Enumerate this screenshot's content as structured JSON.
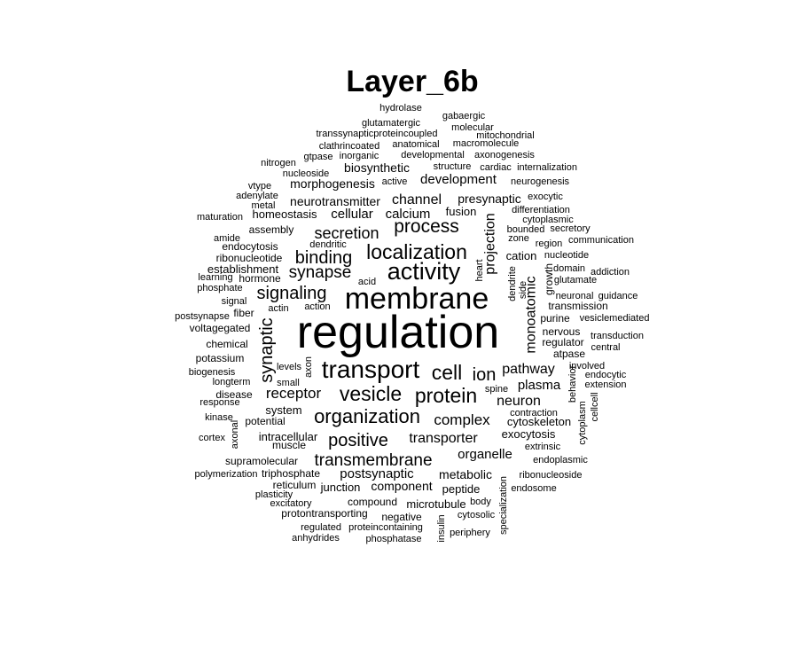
{
  "title": "Layer_6b",
  "words": [
    {
      "text": "regulation",
      "size": 4
    },
    {
      "text": "membrane",
      "size": 3
    },
    {
      "text": "activity",
      "size": 3
    },
    {
      "text": "transport",
      "size": 3
    },
    {
      "text": "localization",
      "size": 2
    },
    {
      "text": "protein",
      "size": 2
    },
    {
      "text": "vesicle",
      "size": 2
    },
    {
      "text": "organization",
      "size": 2
    },
    {
      "text": "cell",
      "size": 2
    },
    {
      "text": "synaptic",
      "size": 2
    },
    {
      "text": "process",
      "size": 2
    },
    {
      "text": "binding",
      "size": 2
    },
    {
      "text": "signaling",
      "size": 2
    },
    {
      "text": "positive",
      "size": 2
    },
    {
      "text": "transmembrane",
      "size": 2
    },
    {
      "text": "ion",
      "size": 2
    },
    {
      "text": "secretion",
      "size": 2
    },
    {
      "text": "synapse",
      "size": 2
    },
    {
      "text": "receptor",
      "size": 2
    },
    {
      "text": "pathway",
      "size": 1
    },
    {
      "text": "complex",
      "size": 1
    },
    {
      "text": "transporter",
      "size": 1
    },
    {
      "text": "channel",
      "size": 1
    },
    {
      "text": "development",
      "size": 1
    },
    {
      "text": "calcium",
      "size": 1
    },
    {
      "text": "cellular",
      "size": 1
    },
    {
      "text": "projection",
      "size": 1
    },
    {
      "text": "monoatomic",
      "size": 1
    },
    {
      "text": "neuron",
      "size": 1
    },
    {
      "text": "plasma",
      "size": 1
    },
    {
      "text": "postsynaptic",
      "size": 1
    },
    {
      "text": "organelle",
      "size": 1
    },
    {
      "text": "metabolic",
      "size": 1
    },
    {
      "text": "presynaptic",
      "size": 1
    },
    {
      "text": "neurotransmitter",
      "size": 1
    },
    {
      "text": "morphogenesis",
      "size": 1
    },
    {
      "text": "biosynthetic",
      "size": 1
    },
    {
      "text": "homeostasis",
      "size": 1
    },
    {
      "text": "component",
      "size": 1
    },
    {
      "text": "intracellular",
      "size": 1
    },
    {
      "text": "exocytosis",
      "size": 1
    },
    {
      "text": "system",
      "size": 1
    },
    {
      "text": "cytoskeleton",
      "size": 1
    },
    {
      "text": "fusion",
      "size": 1
    },
    {
      "text": "hydrolase",
      "size": 0
    },
    {
      "text": "gabaergic",
      "size": 0
    },
    {
      "text": "glutamatergic",
      "size": 0
    },
    {
      "text": "molecular",
      "size": 0
    },
    {
      "text": "transsynapticproteincoupled",
      "size": 0
    },
    {
      "text": "mitochondrial",
      "size": 0
    },
    {
      "text": "anatomical",
      "size": 0
    },
    {
      "text": "macromolecule",
      "size": 0
    },
    {
      "text": "clathrincoated",
      "size": 0
    },
    {
      "text": "gtpase",
      "size": 0
    },
    {
      "text": "inorganic",
      "size": 0
    },
    {
      "text": "developmental",
      "size": 0
    },
    {
      "text": "axonogenesis",
      "size": 0
    },
    {
      "text": "nitrogen",
      "size": 0
    },
    {
      "text": "structure",
      "size": 0
    },
    {
      "text": "cardiac",
      "size": 0
    },
    {
      "text": "internalization",
      "size": 0
    },
    {
      "text": "nucleoside",
      "size": 0
    },
    {
      "text": "active",
      "size": 0
    },
    {
      "text": "neurogenesis",
      "size": 0
    },
    {
      "text": "vtype",
      "size": 0
    },
    {
      "text": "adenylate",
      "size": 0
    },
    {
      "text": "exocytic",
      "size": 0
    },
    {
      "text": "metal",
      "size": 0
    },
    {
      "text": "differentiation",
      "size": 0
    },
    {
      "text": "maturation",
      "size": 0
    },
    {
      "text": "cytoplasmic",
      "size": 0
    },
    {
      "text": "assembly",
      "size": 0
    },
    {
      "text": "bounded",
      "size": 0
    },
    {
      "text": "secretory",
      "size": 0
    },
    {
      "text": "amide",
      "size": 0
    },
    {
      "text": "dendritic",
      "size": 0
    },
    {
      "text": "zone",
      "size": 0
    },
    {
      "text": "communication",
      "size": 0
    },
    {
      "text": "endocytosis",
      "size": 0
    },
    {
      "text": "region",
      "size": 0
    },
    {
      "text": "ribonucleotide",
      "size": 0
    },
    {
      "text": "cation",
      "size": 0
    },
    {
      "text": "nucleotide",
      "size": 0
    },
    {
      "text": "establishment",
      "size": 0
    },
    {
      "text": "heart",
      "size": 0
    },
    {
      "text": "domain",
      "size": 0
    },
    {
      "text": "addiction",
      "size": 0
    },
    {
      "text": "learning",
      "size": 0
    },
    {
      "text": "hormone",
      "size": 0
    },
    {
      "text": "glutamate",
      "size": 0
    },
    {
      "text": "phosphate",
      "size": 0
    },
    {
      "text": "acid",
      "size": 0
    },
    {
      "text": "dendrite",
      "size": 0
    },
    {
      "text": "side",
      "size": 0
    },
    {
      "text": "growth",
      "size": 0
    },
    {
      "text": "neuronal",
      "size": 0
    },
    {
      "text": "guidance",
      "size": 0
    },
    {
      "text": "signal",
      "size": 0
    },
    {
      "text": "actin",
      "size": 0
    },
    {
      "text": "action",
      "size": 0
    },
    {
      "text": "transmission",
      "size": 0
    },
    {
      "text": "fiber",
      "size": 0
    },
    {
      "text": "postsynapse",
      "size": 0
    },
    {
      "text": "purine",
      "size": 0
    },
    {
      "text": "vesiclemediated",
      "size": 0
    },
    {
      "text": "voltagegated",
      "size": 0
    },
    {
      "text": "nervous",
      "size": 0
    },
    {
      "text": "transduction",
      "size": 0
    },
    {
      "text": "chemical",
      "size": 0
    },
    {
      "text": "regulator",
      "size": 0
    },
    {
      "text": "central",
      "size": 0
    },
    {
      "text": "potassium",
      "size": 0
    },
    {
      "text": "atpase",
      "size": 0
    },
    {
      "text": "levels",
      "size": 0
    },
    {
      "text": "axon",
      "size": 0
    },
    {
      "text": "involved",
      "size": 0
    },
    {
      "text": "biogenesis",
      "size": 0
    },
    {
      "text": "endocytic",
      "size": 0
    },
    {
      "text": "small",
      "size": 0
    },
    {
      "text": "longterm",
      "size": 0
    },
    {
      "text": "behavior",
      "size": 0
    },
    {
      "text": "extension",
      "size": 0
    },
    {
      "text": "spine",
      "size": 0
    },
    {
      "text": "disease",
      "size": 0
    },
    {
      "text": "cellcell",
      "size": 0
    },
    {
      "text": "response",
      "size": 0
    },
    {
      "text": "cytoplasm",
      "size": 0
    },
    {
      "text": "contraction",
      "size": 0
    },
    {
      "text": "kinase",
      "size": 0
    },
    {
      "text": "potential",
      "size": 0
    },
    {
      "text": "axonal",
      "size": 0
    },
    {
      "text": "muscle",
      "size": 0
    },
    {
      "text": "extrinsic",
      "size": 0
    },
    {
      "text": "cortex",
      "size": 0
    },
    {
      "text": "supramolecular",
      "size": 0
    },
    {
      "text": "endoplasmic",
      "size": 0
    },
    {
      "text": "polymerization",
      "size": 0
    },
    {
      "text": "triphosphate",
      "size": 0
    },
    {
      "text": "ribonucleoside",
      "size": 0
    },
    {
      "text": "reticulum",
      "size": 0
    },
    {
      "text": "junction",
      "size": 0
    },
    {
      "text": "plasticity",
      "size": 0
    },
    {
      "text": "peptide",
      "size": 0
    },
    {
      "text": "endosome",
      "size": 0
    },
    {
      "text": "excitatory",
      "size": 0
    },
    {
      "text": "compound",
      "size": 0
    },
    {
      "text": "microtubule",
      "size": 0
    },
    {
      "text": "body",
      "size": 0
    },
    {
      "text": "protontransporting",
      "size": 0
    },
    {
      "text": "negative",
      "size": 0
    },
    {
      "text": "cytosolic",
      "size": 0
    },
    {
      "text": "specialization",
      "size": 0
    },
    {
      "text": "regulated",
      "size": 0
    },
    {
      "text": "proteincontaining",
      "size": 0
    },
    {
      "text": "insulin",
      "size": 0
    },
    {
      "text": "anhydrides",
      "size": 0
    },
    {
      "text": "phosphatase",
      "size": 0
    },
    {
      "text": "periphery",
      "size": 0
    }
  ]
}
